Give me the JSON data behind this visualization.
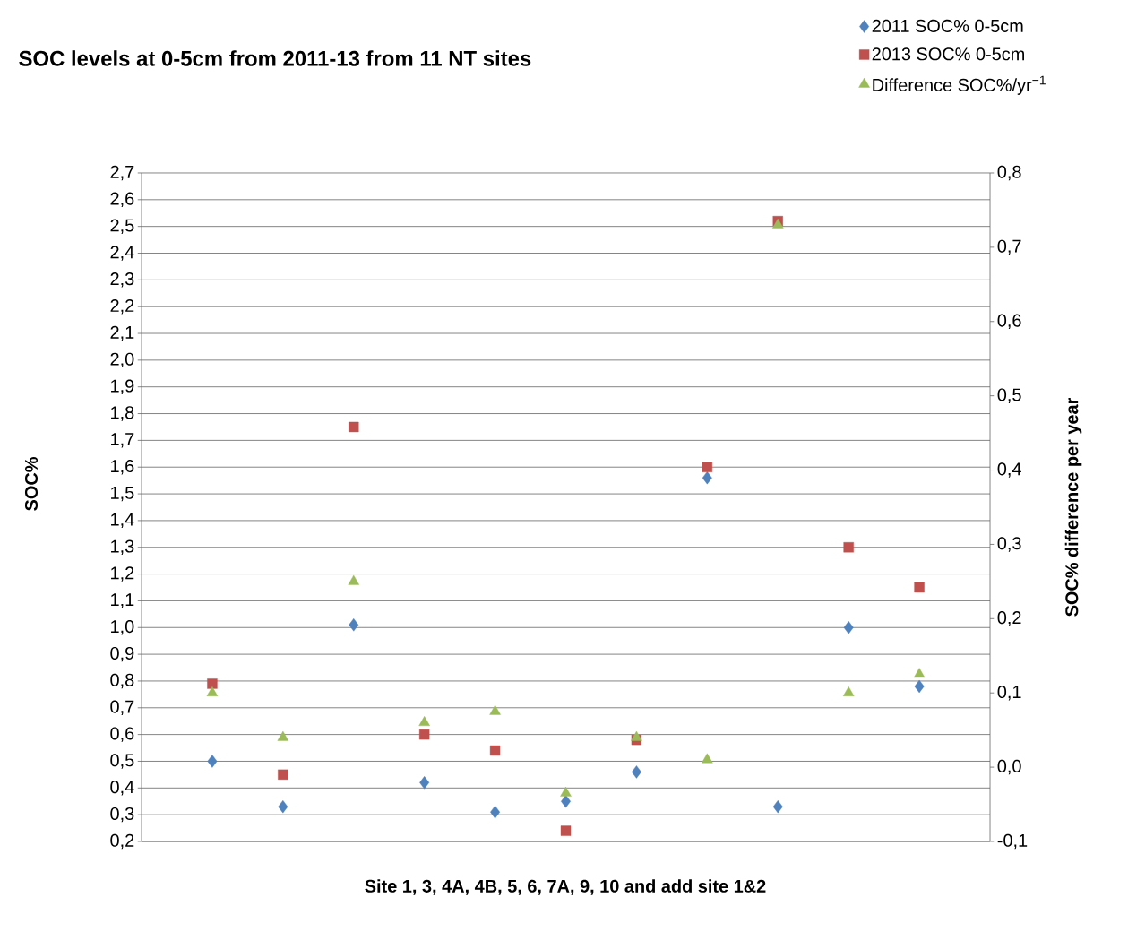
{
  "chart_data": {
    "type": "scatter",
    "title": "SOC levels at 0-5cm from 2011-13 from 11 NT sites",
    "xlabel": "Site 1, 3, 4A, 4B, 5, 6, 7A, 9, 10 and add site 1&2",
    "ylabel": "SOC%",
    "y2label": "SOC% difference per year",
    "categories": [
      null,
      null,
      null,
      null,
      null,
      null,
      null,
      null,
      null,
      null,
      null
    ],
    "series": [
      {
        "name": "2011 SOC% 0-5cm",
        "color": "#4f81bd",
        "marker": "diamond",
        "values": [
          0.5,
          0.33,
          1.01,
          0.42,
          0.31,
          0.35,
          0.46,
          1.56,
          0.33,
          1.0,
          0.78
        ]
      },
      {
        "name": "2013 SOC% 0-5cm",
        "color": "#c0504d",
        "marker": "square",
        "values": [
          0.79,
          0.45,
          1.75,
          0.6,
          0.54,
          0.24,
          0.58,
          1.6,
          2.52,
          1.3,
          1.15
        ]
      },
      {
        "name": "Difference SOC%/yr$^{−1}$",
        "color": "#9bbb59",
        "marker": "triangle",
        "axis": "y2",
        "values": [
          0.1,
          0.04,
          0.25,
          0.06,
          0.075,
          -0.035,
          0.04,
          0.01,
          0.73,
          0.1,
          0.125
        ]
      }
    ],
    "ylim": [
      0.2,
      2.7
    ],
    "yticks": [
      {
        "value": 0.2,
        "label": "0,2"
      },
      {
        "value": 0.3,
        "label": "0,3"
      },
      {
        "value": 0.4,
        "label": "0,4"
      },
      {
        "value": 0.5,
        "label": "0,5"
      },
      {
        "value": 0.6,
        "label": "0,6"
      },
      {
        "value": 0.7,
        "label": "0,7"
      },
      {
        "value": 0.8,
        "label": "0,8"
      },
      {
        "value": 0.9,
        "label": "0,9"
      },
      {
        "value": 1.0,
        "label": "1,0"
      },
      {
        "value": 1.1,
        "label": "1,1"
      },
      {
        "value": 1.2,
        "label": "1,2"
      },
      {
        "value": 1.3,
        "label": "1,3"
      },
      {
        "value": 1.4,
        "label": "1,4"
      },
      {
        "value": 1.5,
        "label": "1,5"
      },
      {
        "value": 1.6,
        "label": "1,6"
      },
      {
        "value": 1.7,
        "label": "1,7"
      },
      {
        "value": 1.8,
        "label": "1,8"
      },
      {
        "value": 1.9,
        "label": "1,9"
      },
      {
        "value": 2.0,
        "label": "2,0"
      },
      {
        "value": 2.1,
        "label": "2,1"
      },
      {
        "value": 2.2,
        "label": "2,2"
      },
      {
        "value": 2.3,
        "label": "2,3"
      },
      {
        "value": 2.4,
        "label": "2,4"
      },
      {
        "value": 2.5,
        "label": "2,5"
      },
      {
        "value": 2.6,
        "label": "2,6"
      },
      {
        "value": 2.7,
        "label": "2,7"
      }
    ],
    "y2lim": [
      -0.1,
      0.8
    ],
    "y2ticks": [
      {
        "value": -0.1,
        "label": "-0,1"
      },
      {
        "value": 0.0,
        "label": "0,0"
      },
      {
        "value": 0.1,
        "label": "0,1"
      },
      {
        "value": 0.2,
        "label": "0,2"
      },
      {
        "value": 0.3,
        "label": "0,3"
      },
      {
        "value": 0.4,
        "label": "0,4"
      },
      {
        "value": 0.5,
        "label": "0,5"
      },
      {
        "value": 0.6,
        "label": "0,6"
      },
      {
        "value": 0.7,
        "label": "0,7"
      },
      {
        "value": 0.8,
        "label": "0,8"
      }
    ],
    "grid": "y",
    "legend": "top right"
  }
}
